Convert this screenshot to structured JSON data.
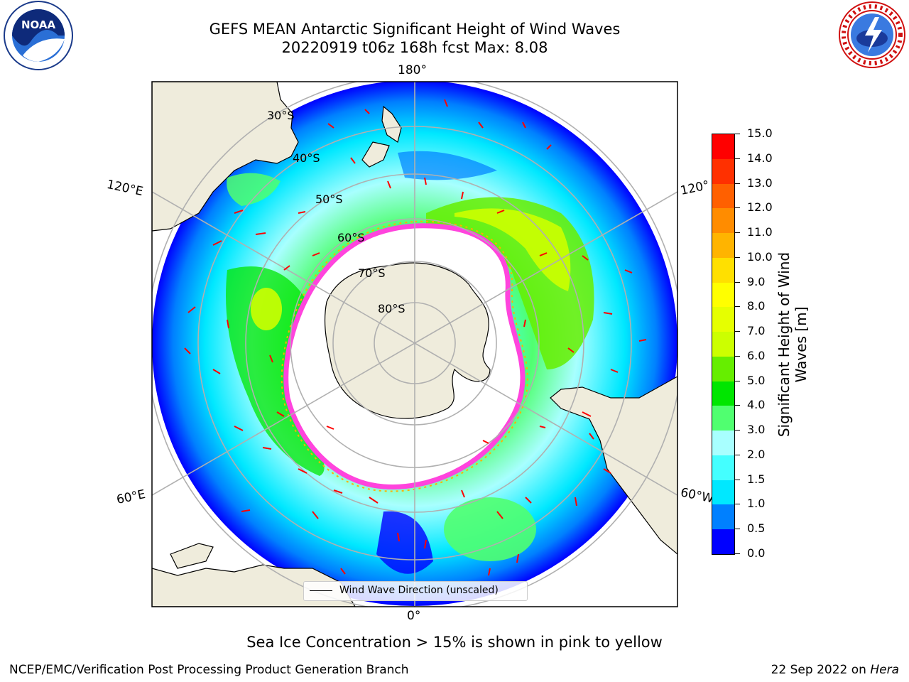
{
  "title": {
    "line1": "GEFS MEAN Antarctic Significant Height of Wind Waves",
    "line2": "20220919 t06z 168h fcst   Max: 8.08"
  },
  "logos": {
    "noaa_text": "NOAA"
  },
  "map": {
    "projection": "south-polar-stereographic",
    "lon_labels": [
      "180°",
      "120°E",
      "120°",
      "60°E",
      "60°W",
      "0°"
    ],
    "lat_labels": [
      "30°S",
      "40°S",
      "50°S",
      "60°S",
      "70°S",
      "80°S"
    ],
    "legend_label": "Wind Wave Direction (unscaled)",
    "colors": {
      "land": "#efecdc",
      "ice_interior": "#ffffff",
      "ice_edge": "#ff44dd",
      "arrow": "#ff0000",
      "grid": "#b0b0b0"
    }
  },
  "colorbar": {
    "title": "Significant Height of Wind Waves [m]",
    "ticks": [
      "0.0",
      "0.5",
      "1.0",
      "1.5",
      "2.0",
      "3.0",
      "4.0",
      "5.0",
      "6.0",
      "7.0",
      "8.0",
      "9.0",
      "10.0",
      "11.0",
      "12.0",
      "13.0",
      "14.0",
      "15.0"
    ],
    "colors": [
      "#0000ff",
      "#0080ff",
      "#00e8ff",
      "#44ffff",
      "#a8ffff",
      "#50ff70",
      "#00e600",
      "#66ee00",
      "#ccff00",
      "#e6ff00",
      "#ffff00",
      "#ffe000",
      "#ffb400",
      "#ff8c00",
      "#ff6000",
      "#ff3000",
      "#ff0000"
    ]
  },
  "note": "Sea Ice Concentration > 15% is shown in pink to yellow",
  "footer": {
    "left": "NCEP/EMC/Verification Post Processing Product Generation Branch",
    "right_date": "22 Sep 2022 on ",
    "right_machine": "Hera"
  }
}
